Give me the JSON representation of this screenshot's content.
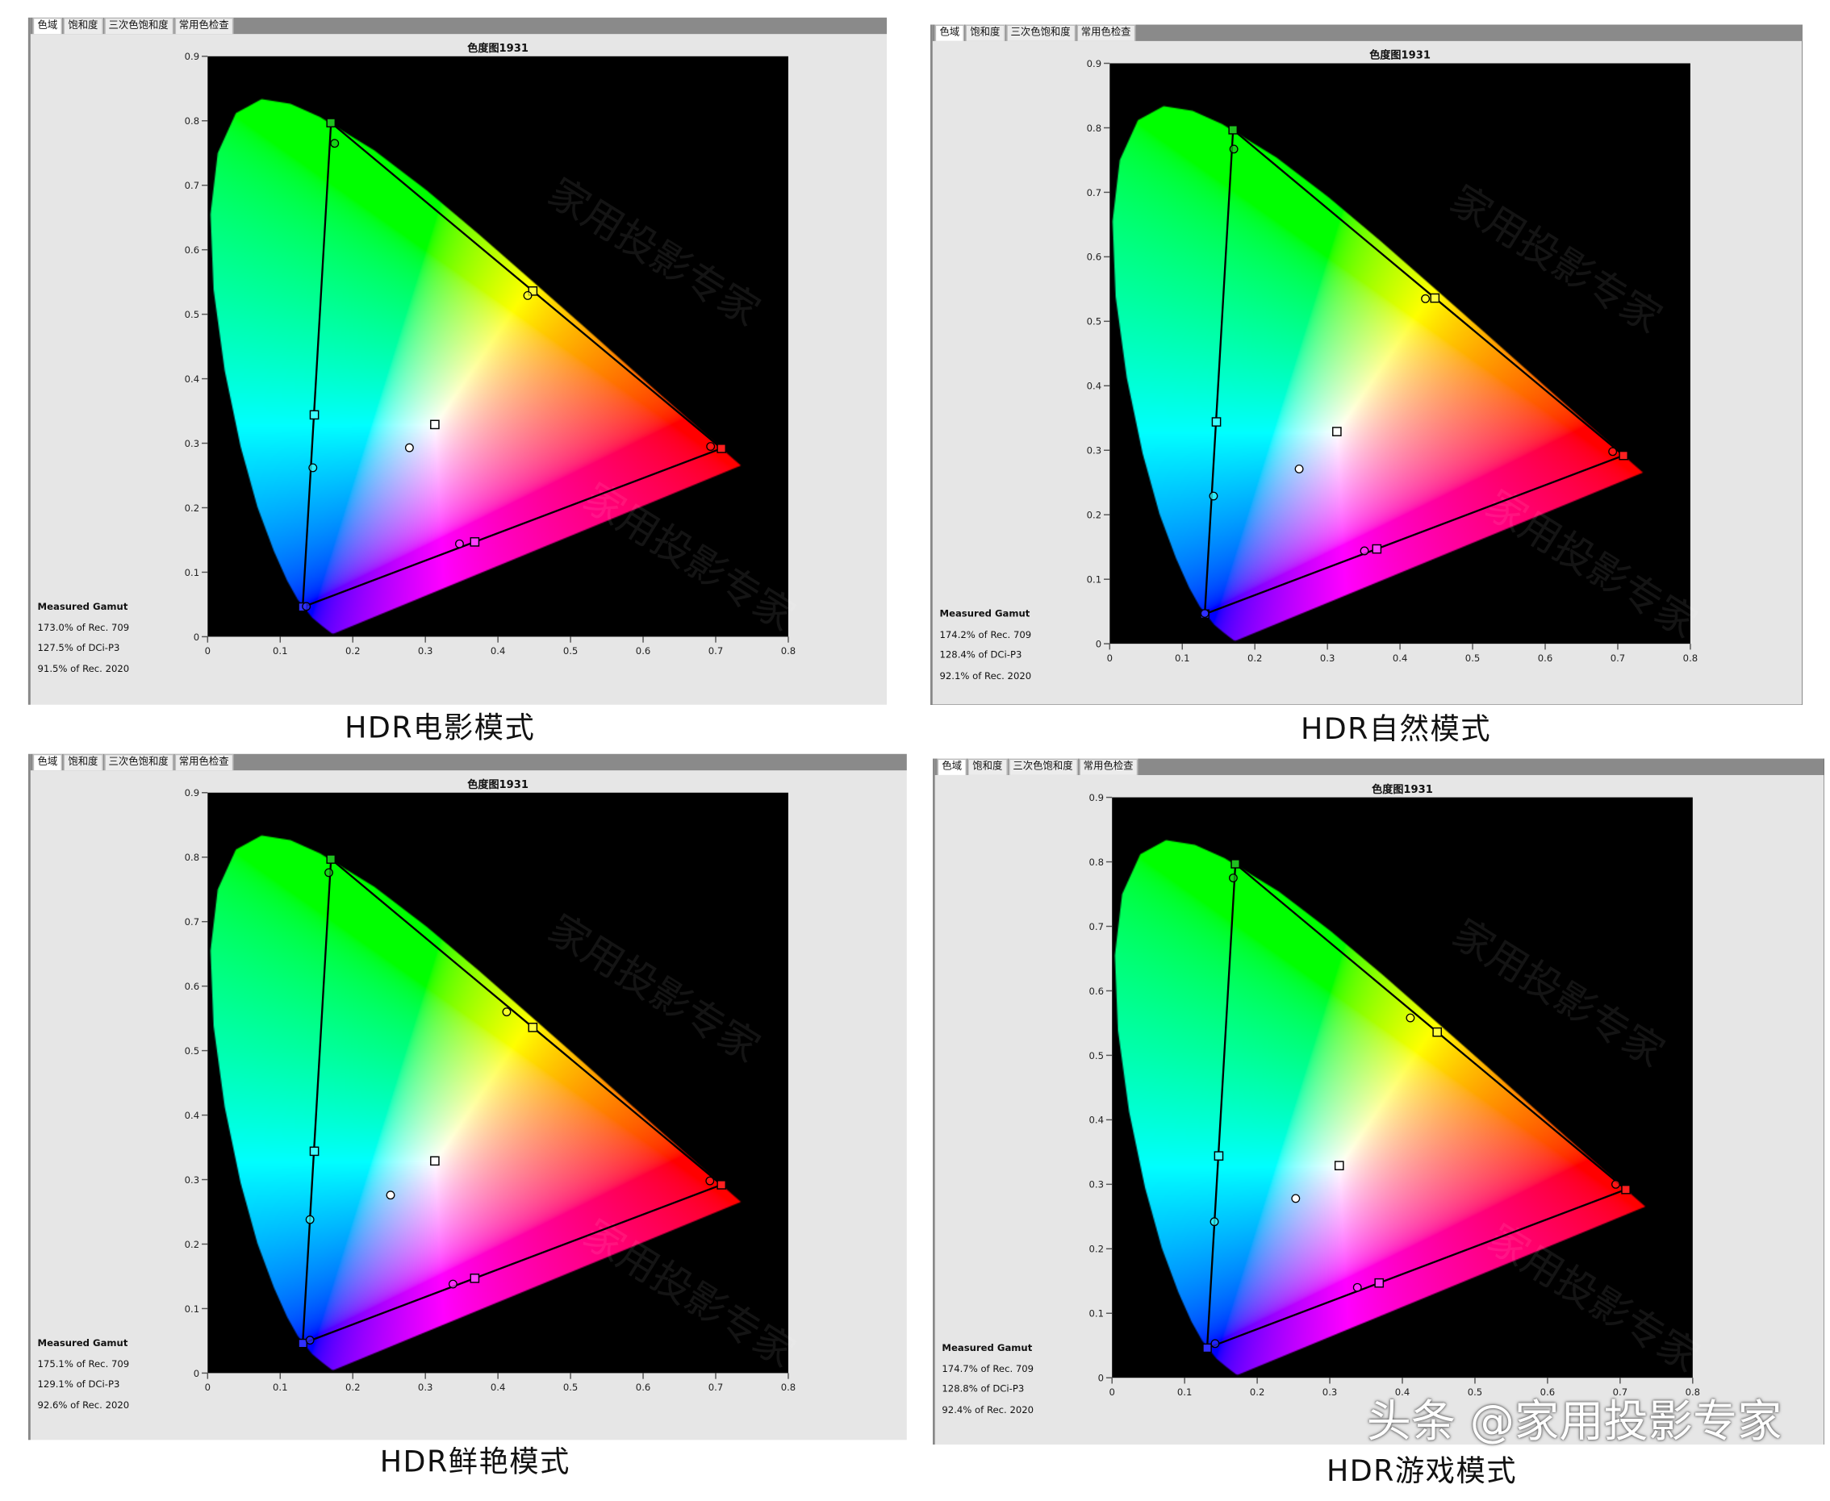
{
  "tabs": [
    "色域",
    "饱和度",
    "三次色饱和度",
    "常用色检查"
  ],
  "watermark": "头条 @家用投影专家",
  "plot_watermark": "家用投影专家",
  "panels": [
    {
      "caption": "HDR电影模式",
      "gamut_title": "Measured Gamut",
      "gamut": [
        "173.0% of Rec. 709",
        "127.5% of DCi-P3",
        "91.5% of Rec. 2020"
      ]
    },
    {
      "caption": "HDR自然模式",
      "gamut_title": "Measured Gamut",
      "gamut": [
        "174.2% of Rec. 709",
        "128.4% of DCi-P3",
        "92.1% of Rec. 2020"
      ]
    },
    {
      "caption": "HDR鲜艳模式",
      "gamut_title": "Measured Gamut",
      "gamut": [
        "175.1% of Rec. 709",
        "129.1% of DCi-P3",
        "92.6% of Rec. 2020"
      ]
    },
    {
      "caption": "HDR游戏模式",
      "gamut_title": "Measured Gamut",
      "gamut": [
        "174.7% of Rec. 709",
        "128.8% of DCi-P3",
        "92.4% of Rec. 2020"
      ]
    }
  ],
  "chart_data": [
    {
      "type": "scatter",
      "title": "色度图1931",
      "xlim": [
        0,
        0.8
      ],
      "ylim": [
        0,
        0.9
      ],
      "xticks": [
        "0",
        "0.1",
        "0.2",
        "0.3",
        "0.4",
        "0.5",
        "0.6",
        "0.7",
        "0.8"
      ],
      "yticks": [
        "0",
        "0.1",
        "0.2",
        "0.3",
        "0.4",
        "0.5",
        "0.6",
        "0.7",
        "0.8",
        "0.9"
      ],
      "targets": {
        "red": [
          0.708,
          0.292
        ],
        "green": [
          0.17,
          0.797
        ],
        "blue": [
          0.131,
          0.046
        ],
        "white": [
          0.313,
          0.329
        ],
        "yellow": [
          0.448,
          0.536
        ],
        "cyan": [
          0.147,
          0.344
        ],
        "magenta": [
          0.368,
          0.147
        ]
      },
      "measured": {
        "red": [
          0.693,
          0.295
        ],
        "green": [
          0.175,
          0.765
        ],
        "blue": [
          0.136,
          0.047
        ],
        "white": [
          0.278,
          0.293
        ],
        "yellow": [
          0.441,
          0.529
        ],
        "cyan": [
          0.145,
          0.262
        ],
        "magenta": [
          0.347,
          0.144
        ]
      }
    },
    {
      "type": "scatter",
      "title": "色度图1931",
      "xlim": [
        0,
        0.8
      ],
      "ylim": [
        0,
        0.9
      ],
      "xticks": [
        "0",
        "0.1",
        "0.2",
        "0.3",
        "0.4",
        "0.5",
        "0.6",
        "0.7",
        "0.8"
      ],
      "yticks": [
        "0",
        "0.1",
        "0.2",
        "0.3",
        "0.4",
        "0.5",
        "0.6",
        "0.7",
        "0.8",
        "0.9"
      ],
      "targets": {
        "red": [
          0.708,
          0.292
        ],
        "green": [
          0.17,
          0.797
        ],
        "blue": [
          0.131,
          0.046
        ],
        "white": [
          0.313,
          0.329
        ],
        "yellow": [
          0.448,
          0.536
        ],
        "cyan": [
          0.147,
          0.344
        ],
        "magenta": [
          0.368,
          0.147
        ]
      },
      "measured": {
        "red": [
          0.693,
          0.298
        ],
        "green": [
          0.171,
          0.767
        ],
        "blue": [
          0.131,
          0.047
        ],
        "white": [
          0.261,
          0.271
        ],
        "yellow": [
          0.435,
          0.535
        ],
        "cyan": [
          0.143,
          0.229
        ],
        "magenta": [
          0.351,
          0.144
        ]
      }
    },
    {
      "type": "scatter",
      "title": "色度图1931",
      "xlim": [
        0,
        0.8
      ],
      "ylim": [
        0,
        0.9
      ],
      "xticks": [
        "0",
        "0.1",
        "0.2",
        "0.3",
        "0.4",
        "0.5",
        "0.6",
        "0.7",
        "0.8"
      ],
      "yticks": [
        "0",
        "0.1",
        "0.2",
        "0.3",
        "0.4",
        "0.5",
        "0.6",
        "0.7",
        "0.8",
        "0.9"
      ],
      "targets": {
        "red": [
          0.708,
          0.292
        ],
        "green": [
          0.17,
          0.797
        ],
        "blue": [
          0.131,
          0.046
        ],
        "white": [
          0.313,
          0.329
        ],
        "yellow": [
          0.448,
          0.536
        ],
        "cyan": [
          0.147,
          0.344
        ],
        "magenta": [
          0.368,
          0.147
        ]
      },
      "measured": {
        "red": [
          0.692,
          0.298
        ],
        "green": [
          0.167,
          0.776
        ],
        "blue": [
          0.141,
          0.051
        ],
        "white": [
          0.252,
          0.276
        ],
        "yellow": [
          0.412,
          0.56
        ],
        "cyan": [
          0.141,
          0.238
        ],
        "magenta": [
          0.338,
          0.138
        ]
      }
    },
    {
      "type": "scatter",
      "title": "色度图1931",
      "xlim": [
        0,
        0.8
      ],
      "ylim": [
        0,
        0.9
      ],
      "xticks": [
        "0",
        "0.1",
        "0.2",
        "0.3",
        "0.4",
        "0.5",
        "0.6",
        "0.7",
        "0.8"
      ],
      "yticks": [
        "0",
        "0.1",
        "0.2",
        "0.3",
        "0.4",
        "0.5",
        "0.6",
        "0.7",
        "0.8",
        "0.9"
      ],
      "targets": {
        "red": [
          0.708,
          0.292
        ],
        "green": [
          0.17,
          0.797
        ],
        "blue": [
          0.131,
          0.046
        ],
        "white": [
          0.313,
          0.329
        ],
        "yellow": [
          0.448,
          0.536
        ],
        "cyan": [
          0.147,
          0.344
        ],
        "magenta": [
          0.368,
          0.147
        ]
      },
      "measured": {
        "red": [
          0.694,
          0.3
        ],
        "green": [
          0.167,
          0.775
        ],
        "blue": [
          0.142,
          0.053
        ],
        "white": [
          0.253,
          0.278
        ],
        "yellow": [
          0.411,
          0.558
        ],
        "cyan": [
          0.141,
          0.242
        ],
        "magenta": [
          0.338,
          0.14
        ]
      }
    }
  ],
  "marker_colors": {
    "red": "#ff2020",
    "green": "#20c020",
    "blue": "#3030ff",
    "white": "#ffffff",
    "yellow": "#ffff40",
    "cyan": "#40ffff",
    "magenta": "#ff40ff"
  }
}
